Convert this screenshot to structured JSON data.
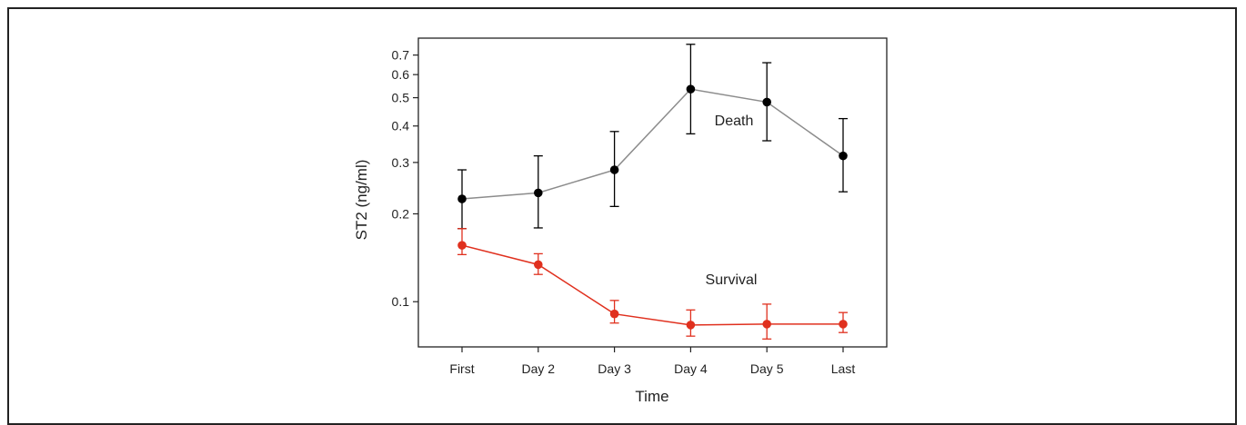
{
  "chart_data": {
    "type": "line",
    "categories": [
      "First",
      "Day 2",
      "Day 3",
      "Day 4",
      "Day 5",
      "Last"
    ],
    "xlabel": "Time",
    "ylabel": "ST2 (ng/ml)",
    "yscale": "log",
    "ylim": [
      0.07,
      0.8
    ],
    "yticks": [
      {
        "value": 0.1,
        "label": "0.1"
      },
      {
        "value": 0.2,
        "label": "0.2"
      },
      {
        "value": 0.3,
        "label": "0.3"
      },
      {
        "value": 0.4,
        "label": "0.4"
      },
      {
        "value": 0.5,
        "label": "0.5"
      },
      {
        "value": 0.6,
        "label": "0.6"
      },
      {
        "value": 0.7,
        "label": "0.7"
      }
    ],
    "grid": false,
    "series": [
      {
        "name": "Death",
        "color": "#000000",
        "line_color": "#8c8c8c",
        "values": [
          0.225,
          0.236,
          0.283,
          0.535,
          0.483,
          0.316
        ],
        "lower": [
          0.178,
          0.179,
          0.212,
          0.376,
          0.356,
          0.238
        ],
        "upper": [
          0.283,
          0.316,
          0.383,
          0.762,
          0.659,
          0.424
        ]
      },
      {
        "name": "Survival",
        "color": "#e0301e",
        "line_color": "#e0301e",
        "values": [
          0.156,
          0.134,
          0.0908,
          0.0832,
          0.0838,
          0.0838
        ],
        "lower": [
          0.145,
          0.124,
          0.0845,
          0.0762,
          0.0745,
          0.0784
        ],
        "upper": [
          0.178,
          0.146,
          0.101,
          0.0937,
          0.0981,
          0.0918
        ]
      }
    ]
  }
}
